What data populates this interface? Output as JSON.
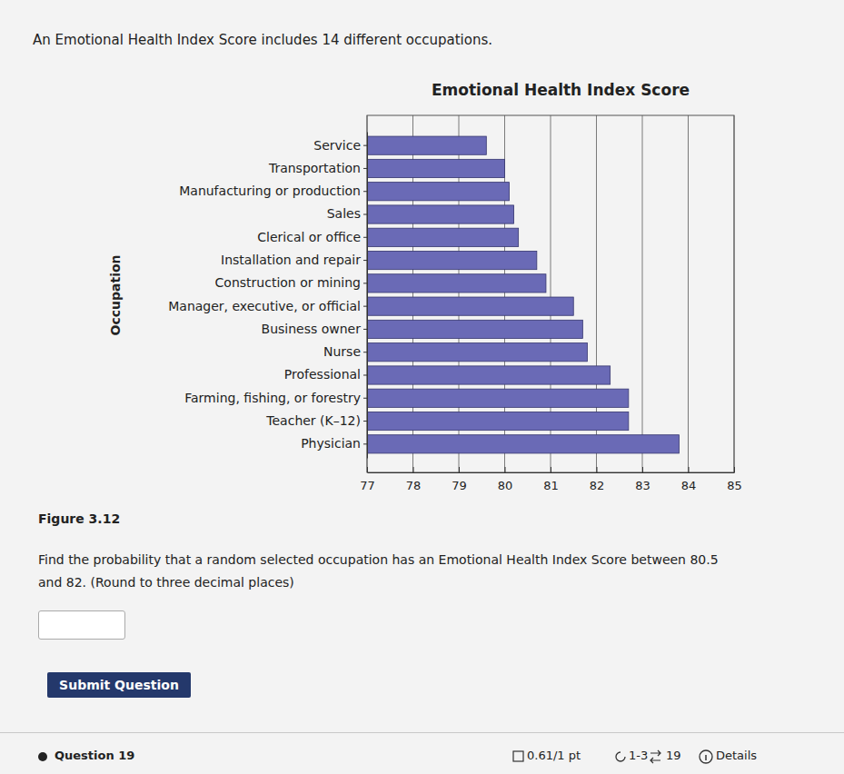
{
  "chart_data": {
    "type": "bar",
    "orientation": "horizontal",
    "title": "Emotional Health Index Score",
    "ylabel": "Occupation",
    "categories": [
      "Service",
      "Transportation",
      "Manufacturing or production",
      "Sales",
      "Clerical or office",
      "Installation and repair",
      "Construction or mining",
      "Manager, executive, or official",
      "Business owner",
      "Nurse",
      "Professional",
      "Farming, fishing, or forestry",
      "Teacher (K–12)",
      "Physician"
    ],
    "values": [
      79.6,
      80.0,
      80.1,
      80.2,
      80.3,
      80.7,
      80.9,
      81.5,
      81.7,
      81.8,
      82.3,
      82.7,
      82.7,
      83.8
    ],
    "color": "#6a6ab6",
    "xlim": [
      77,
      85
    ],
    "xticks": [
      77,
      78,
      79,
      80,
      81,
      82,
      83,
      84,
      85
    ],
    "grid": true
  },
  "page": {
    "header": "An Emotional Health Index Score includes 14 different occupations.",
    "figure_label": "Figure 3.12",
    "question_lines": [
      "Find the probability that a random selected occupation has an Emotional Health Index Score between 80.5",
      "and 82. (Round to three decimal places)"
    ],
    "submit_button": "Submit Question",
    "footer": {
      "question": "Question 19",
      "score": "0.61/1 pt",
      "attempts": "1-3",
      "submissions": "19",
      "details": "Details"
    }
  }
}
